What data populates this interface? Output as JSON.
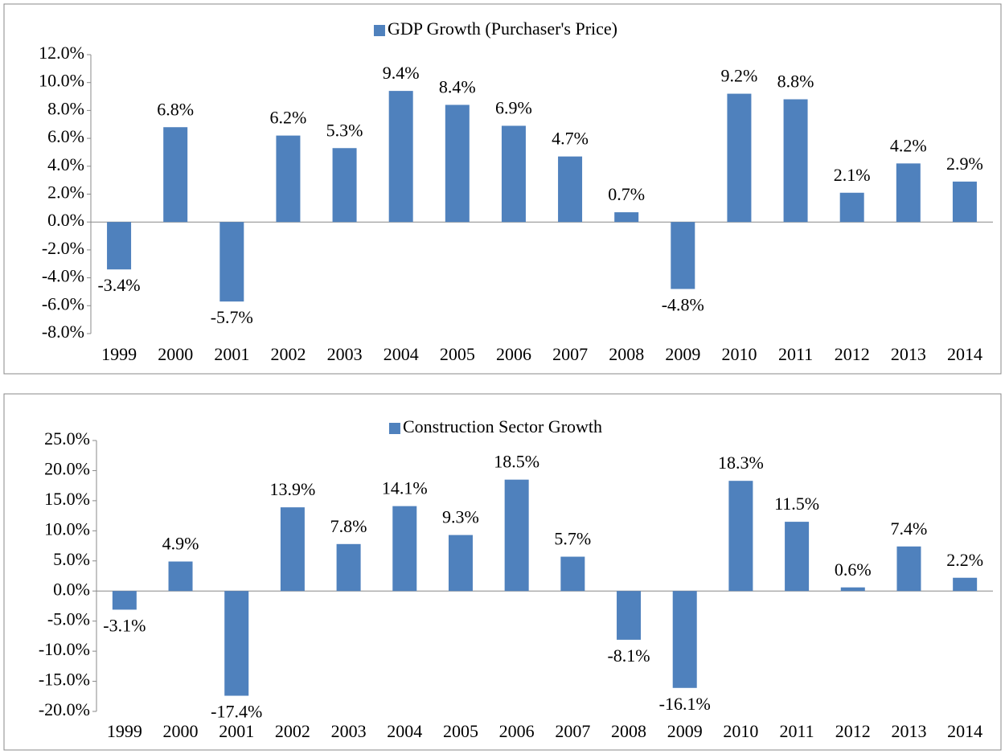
{
  "chart_data": [
    {
      "type": "bar",
      "categories": [
        "1999",
        "2000",
        "2001",
        "2002",
        "2003",
        "2004",
        "2005",
        "2006",
        "2007",
        "2008",
        "2009",
        "2010",
        "2011",
        "2012",
        "2013",
        "2014"
      ],
      "series": [
        {
          "name": "GDP Growth (Purchaser's Price)",
          "color": "#4f81bd",
          "values": [
            -3.4,
            6.8,
            -5.7,
            6.2,
            5.3,
            9.4,
            8.4,
            6.9,
            4.7,
            0.7,
            -4.8,
            9.2,
            8.8,
            2.1,
            4.2,
            2.9
          ],
          "value_labels": [
            "-3.4%",
            "6.8%",
            "-5.7%",
            "6.2%",
            "5.3%",
            "9.4%",
            "8.4%",
            "6.9%",
            "4.7%",
            "0.7%",
            "-4.8%",
            "9.2%",
            "8.8%",
            "2.1%",
            "4.2%",
            "2.9%"
          ]
        }
      ],
      "ylim": [
        -8,
        12
      ],
      "yticks": [
        {
          "value": -8,
          "label": "-8.0%"
        },
        {
          "value": -6,
          "label": "-6.0%"
        },
        {
          "value": -4,
          "label": "-4.0%"
        },
        {
          "value": -2,
          "label": "-2.0%"
        },
        {
          "value": 0,
          "label": "0.0%"
        },
        {
          "value": 2,
          "label": "2.0%"
        },
        {
          "value": 4,
          "label": "4.0%"
        },
        {
          "value": 6,
          "label": "6.0%"
        },
        {
          "value": 8,
          "label": "8.0%"
        },
        {
          "value": 10,
          "label": "10.0%"
        },
        {
          "value": 12,
          "label": "12.0%"
        }
      ],
      "legend": "top"
    },
    {
      "type": "bar",
      "categories": [
        "1999",
        "2000",
        "2001",
        "2002",
        "2003",
        "2004",
        "2005",
        "2006",
        "2007",
        "2008",
        "2009",
        "2010",
        "2011",
        "2012",
        "2013",
        "2014"
      ],
      "series": [
        {
          "name": "Construction Sector Growth",
          "color": "#4f81bd",
          "values": [
            -3.1,
            4.9,
            -17.4,
            13.9,
            7.8,
            14.1,
            9.3,
            18.5,
            5.7,
            -8.1,
            -16.1,
            18.3,
            11.5,
            0.6,
            7.4,
            2.2
          ],
          "value_labels": [
            "-3.1%",
            "4.9%",
            "-17.4%",
            "13.9%",
            "7.8%",
            "14.1%",
            "9.3%",
            "18.5%",
            "5.7%",
            "-8.1%",
            "-16.1%",
            "18.3%",
            "11.5%",
            "0.6%",
            "7.4%",
            "2.2%"
          ]
        }
      ],
      "ylim": [
        -20,
        25
      ],
      "yticks": [
        {
          "value": -20,
          "label": "-20.0%"
        },
        {
          "value": -15,
          "label": "-15.0%"
        },
        {
          "value": -10,
          "label": "-10.0%"
        },
        {
          "value": -5,
          "label": "-5.0%"
        },
        {
          "value": 0,
          "label": "0.0%"
        },
        {
          "value": 5,
          "label": "5.0%"
        },
        {
          "value": 10,
          "label": "10.0%"
        },
        {
          "value": 15,
          "label": "15.0%"
        },
        {
          "value": 20,
          "label": "20.0%"
        },
        {
          "value": 25,
          "label": "25.0%"
        }
      ],
      "legend": "top"
    }
  ]
}
